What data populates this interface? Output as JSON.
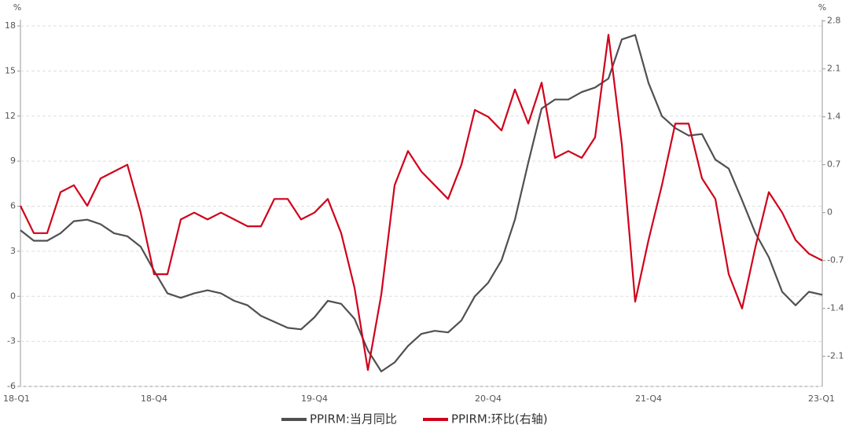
{
  "chart_data": {
    "type": "line",
    "ylabel": "%",
    "y2label": "%",
    "categories": [
      "18-Q1",
      null,
      null,
      null,
      null,
      null,
      null,
      null,
      null,
      null,
      "18-Q4",
      null,
      null,
      null,
      null,
      null,
      null,
      null,
      null,
      null,
      null,
      null,
      "19-Q4",
      null,
      null,
      null,
      null,
      null,
      null,
      null,
      null,
      null,
      null,
      null,
      null,
      "20-Q4",
      null,
      null,
      null,
      null,
      null,
      null,
      null,
      null,
      null,
      null,
      null,
      "21-Q4",
      null,
      null,
      null,
      null,
      null,
      null,
      null,
      null,
      null,
      null,
      null,
      null,
      "23-Q1"
    ],
    "series": [
      {
        "name": "PPIRM:当月同比",
        "color": "#505050",
        "values": [
          4.4,
          3.7,
          3.7,
          4.2,
          5.0,
          5.1,
          4.8,
          4.2,
          4.0,
          3.3,
          1.7,
          0.2,
          -0.1,
          0.2,
          0.4,
          0.2,
          -0.3,
          -0.6,
          -1.3,
          -1.7,
          -2.1,
          -2.2,
          -1.4,
          -0.3,
          -0.5,
          -1.5,
          -3.6,
          -5.0,
          -4.4,
          -3.3,
          -2.5,
          -2.3,
          -2.4,
          -1.6,
          0.0,
          0.9,
          2.4,
          5.1,
          8.9,
          12.5,
          13.1,
          13.1,
          13.6,
          13.9,
          14.5,
          17.1,
          17.4,
          14.2,
          12.0,
          11.2,
          10.7,
          10.8,
          9.1,
          8.5,
          6.4,
          4.2,
          2.6,
          0.3,
          -0.6,
          0.3,
          0.1
        ]
      },
      {
        "name": "PPIRM:环比(右轴)",
        "color": "#d0021b",
        "axis": "y2",
        "values": [
          0.1,
          -0.3,
          -0.3,
          0.3,
          0.4,
          0.1,
          0.5,
          0.6,
          0.7,
          0.0,
          -0.9,
          -0.9,
          -0.1,
          0.0,
          -0.1,
          0.0,
          -0.1,
          -0.2,
          -0.2,
          0.2,
          0.2,
          -0.1,
          0.0,
          0.2,
          -0.3,
          -1.1,
          -2.3,
          -1.2,
          0.4,
          0.9,
          0.6,
          0.4,
          0.2,
          0.7,
          1.5,
          1.4,
          1.2,
          1.8,
          1.3,
          1.9,
          0.8,
          0.9,
          0.8,
          1.1,
          2.6,
          1.0,
          -1.3,
          -0.4,
          0.4,
          1.3,
          1.3,
          0.5,
          0.2,
          -0.9,
          -1.4,
          -0.5,
          0.3,
          0.0,
          -0.4,
          -0.6,
          -0.7
        ]
      }
    ],
    "ylim": [
      -6,
      18.42
    ],
    "yticks": [
      -6,
      -3,
      0,
      3,
      6,
      9,
      12,
      15,
      18
    ],
    "y2lim": [
      -2.54,
      2.82
    ],
    "y2ticks": [
      -2.1,
      -1.4,
      -0.7,
      0,
      0.7,
      1.4,
      2.1,
      2.8
    ],
    "grid": true,
    "legend": "bottom"
  }
}
